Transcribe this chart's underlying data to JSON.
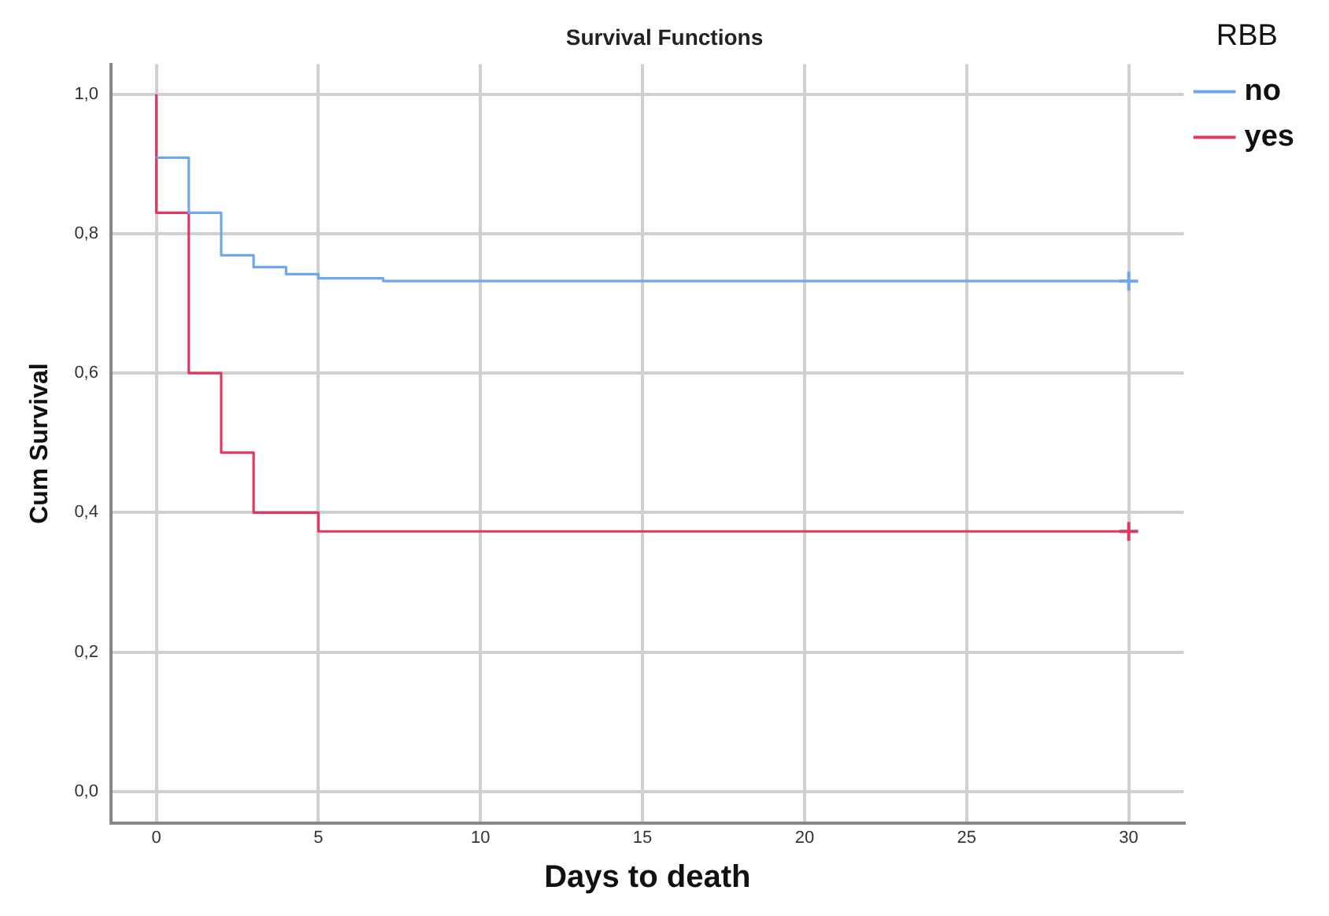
{
  "chart_data": {
    "type": "step",
    "title": "Survival Functions",
    "xlabel": "Days to death",
    "ylabel": "Cum Survival",
    "legend_title": "RBB",
    "xlim": [
      -1.4,
      31.7
    ],
    "xticks": [
      0,
      5,
      10,
      15,
      20,
      25,
      30
    ],
    "ylim": [
      -0.045,
      1.043
    ],
    "yticks": [
      {
        "value": 0,
        "label": "0,0"
      },
      {
        "value": 0.2,
        "label": "0,2"
      },
      {
        "value": 0.4,
        "label": "0,4"
      },
      {
        "value": 0.6,
        "label": "0,6"
      },
      {
        "value": 0.8,
        "label": "0,8"
      },
      {
        "value": 1,
        "label": "1,0"
      }
    ],
    "grid": true,
    "legend": "top right",
    "marker": "none",
    "series": [
      {
        "name": "no",
        "color": "#6fa8ec",
        "x": [
          0,
          1,
          2,
          3,
          4,
          5,
          7,
          30
        ],
        "values": [
          0.909,
          0.83,
          0.769,
          0.752,
          0.742,
          0.736,
          0.732,
          0.732
        ]
      },
      {
        "name": "yes",
        "color": "#e0385f",
        "x": [
          0,
          0,
          1,
          2,
          3,
          5,
          30
        ],
        "values": [
          1,
          0.83,
          0.6,
          0.486,
          0.4,
          0.373,
          0.373
        ]
      },
      {
        "type": "scatter",
        "marker": "cross",
        "color": "#6fa8ec",
        "x": [
          30
        ],
        "values": [
          0.732
        ]
      },
      {
        "type": "scatter",
        "marker": "cross",
        "color": "#e0385f",
        "x": [
          30
        ],
        "values": [
          0.373
        ]
      }
    ]
  }
}
